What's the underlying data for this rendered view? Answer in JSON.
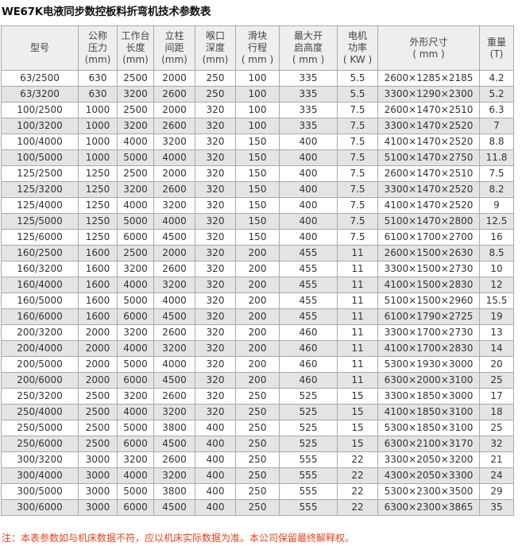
{
  "title": "WE67K电液同步数控板料折弯机技术参数表",
  "headers": [
    [
      "型号"
    ],
    [
      "公称",
      "压力",
      "(mm)"
    ],
    [
      "工作台",
      "长度",
      "(mm)"
    ],
    [
      "立柱",
      "间距",
      "(mm)"
    ],
    [
      "喉口",
      "深度",
      "(mm)"
    ],
    [
      "滑块",
      "行程",
      "( mm )"
    ],
    [
      "最大开",
      "启高度",
      "( mm )"
    ],
    [
      "电机",
      "功率",
      "( KW )"
    ],
    [
      "外形尺寸",
      "( mm )"
    ],
    [
      "重量",
      "(T)"
    ]
  ],
  "rows": [
    [
      "63/2500",
      "630",
      "2500",
      "2000",
      "250",
      "100",
      "335",
      "5.5",
      "2600×1285×2185",
      "4.2"
    ],
    [
      "63/3200",
      "630",
      "3200",
      "2600",
      "250",
      "100",
      "335",
      "5.5",
      "3300×1290×2300",
      "5.2"
    ],
    [
      "100/2500",
      "1000",
      "2500",
      "2000",
      "320",
      "100",
      "335",
      "7.5",
      "2600×1470×2510",
      "6.3"
    ],
    [
      "100/3200",
      "1000",
      "3200",
      "2600",
      "320",
      "100",
      "335",
      "7.5",
      "3300×1470×2520",
      "7"
    ],
    [
      "100/4000",
      "1000",
      "4000",
      "3200",
      "320",
      "150",
      "400",
      "7.5",
      "4100×1470×2520",
      "8.8"
    ],
    [
      "100/5000",
      "1000",
      "5000",
      "4000",
      "320",
      "150",
      "400",
      "7.5",
      "5100×1470×2750",
      "11.8"
    ],
    [
      "125/2500",
      "1250",
      "2500",
      "2000",
      "320",
      "150",
      "400",
      "7.5",
      "2600×1470×2510",
      "7.5"
    ],
    [
      "125/3200",
      "1250",
      "3200",
      "2600",
      "320",
      "150",
      "400",
      "7.5",
      "3300×1470×2520",
      "8.2"
    ],
    [
      "125/4000",
      "1250",
      "4000",
      "3200",
      "320",
      "150",
      "400",
      "7.5",
      "4100×1470×2520",
      "9"
    ],
    [
      "125/5000",
      "1250",
      "5000",
      "4000",
      "320",
      "150",
      "400",
      "7.5",
      "5100×1470×2800",
      "12.5"
    ],
    [
      "125/6000",
      "1250",
      "6000",
      "4500",
      "320",
      "150",
      "400",
      "7.5",
      "6100×1700×2700",
      "16"
    ],
    [
      "160/2500",
      "1600",
      "2500",
      "2000",
      "320",
      "200",
      "455",
      "11",
      "2600×1500×2630",
      "8.5"
    ],
    [
      "160/3200",
      "1600",
      "3200",
      "2600",
      "320",
      "200",
      "455",
      "11",
      "3300×1500×2730",
      "10"
    ],
    [
      "160/4000",
      "1600",
      "4000",
      "3200",
      "320",
      "200",
      "455",
      "11",
      "4100×1500×2830",
      "12"
    ],
    [
      "160/5000",
      "1600",
      "5000",
      "4000",
      "320",
      "200",
      "455",
      "11",
      "5100×1500×2960",
      "15.5"
    ],
    [
      "160/6000",
      "1600",
      "6000",
      "4500",
      "320",
      "200",
      "455",
      "11",
      "6100×1790×2725",
      "19"
    ],
    [
      "200/3200",
      "2000",
      "3200",
      "2600",
      "320",
      "200",
      "460",
      "11",
      "3300×1700×2730",
      "13"
    ],
    [
      "200/4000",
      "2000",
      "4000",
      "3200",
      "320",
      "200",
      "460",
      "11",
      "4100×1700×2830",
      "14"
    ],
    [
      "200/5000",
      "2000",
      "5000",
      "4000",
      "320",
      "200",
      "460",
      "11",
      "5300×1930×3000",
      "20"
    ],
    [
      "200/6000",
      "2000",
      "6000",
      "4500",
      "320",
      "200",
      "460",
      "11",
      "6300×2000×3100",
      "25"
    ],
    [
      "250/3200",
      "2500",
      "3200",
      "2600",
      "320",
      "250",
      "525",
      "15",
      "3300×1850×3000",
      "17"
    ],
    [
      "250/4000",
      "2500",
      "4000",
      "3200",
      "320",
      "250",
      "525",
      "15",
      "4100×1850×3100",
      "18"
    ],
    [
      "250/5000",
      "2500",
      "5000",
      "3800",
      "400",
      "250",
      "525",
      "15",
      "5300×1850×3100",
      "25"
    ],
    [
      "250/6000",
      "2500",
      "6000",
      "4500",
      "400",
      "250",
      "525",
      "15",
      "6300×2100×3170",
      "32"
    ],
    [
      "300/3200",
      "3000",
      "3200",
      "2600",
      "400",
      "250",
      "555",
      "22",
      "3300×2050×3200",
      "21"
    ],
    [
      "300/4000",
      "3000",
      "4000",
      "3200",
      "400",
      "250",
      "555",
      "22",
      "4300×2050×3300",
      "24"
    ],
    [
      "300/5000",
      "3000",
      "5000",
      "3800",
      "400",
      "250",
      "555",
      "22",
      "5300×2300×3500",
      "29"
    ],
    [
      "300/6000",
      "3000",
      "6000",
      "4500",
      "400",
      "250",
      "555",
      "22",
      "6300×2300×3865",
      "35"
    ]
  ],
  "note": "注：本表参数如与机床数据不符，应以机床实际数据为准。本公司保留最终解释权。",
  "colors": {
    "note": "#e8401c",
    "stripe": "#e4e4e4",
    "border": "#a9a9a9"
  }
}
